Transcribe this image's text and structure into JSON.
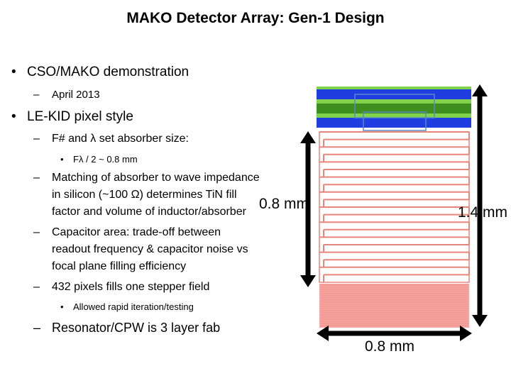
{
  "title": "MAKO Detector Array: Gen-1 Design",
  "bullets": {
    "b1": "CSO/MAKO demonstration",
    "b1_sub": "April 2013",
    "b2": "LE-KID pixel style",
    "b2_sub1": "F# and λ set absorber size:",
    "b2_sub1_sub": "Fλ / 2 ~ 0.8 mm",
    "b2_sub2_line1": "Matching of absorber to wave impedance",
    "b2_sub2_line2": "in silicon (~100 Ω) determines TiN fill",
    "b2_sub2_line3": "factor and volume of inductor/absorber",
    "b2_sub3_line1": "Capacitor area: trade-off between",
    "b2_sub3_line2": "readout frequency & capacitor noise vs",
    "b2_sub3_line3": "focal plane filling efficiency",
    "b2_sub4": "432 pixels fills one stepper field",
    "b2_sub4_sub": "Allowed rapid iteration/testing",
    "b2_sub5": "Resonator/CPW is 3 layer fab"
  },
  "diagram": {
    "label_absorber_height": "0.8 mm",
    "label_total_height": "1.4 mm",
    "label_width": "0.8 mm",
    "colors": {
      "cpw_blue": "#1f3de0",
      "cpw_green_light": "#7fd24a",
      "cpw_green_dark": "#3f8f1f",
      "meander": "#e8857a",
      "capacitor_fill": "#f6a6a0",
      "arrow": "#000000"
    }
  }
}
